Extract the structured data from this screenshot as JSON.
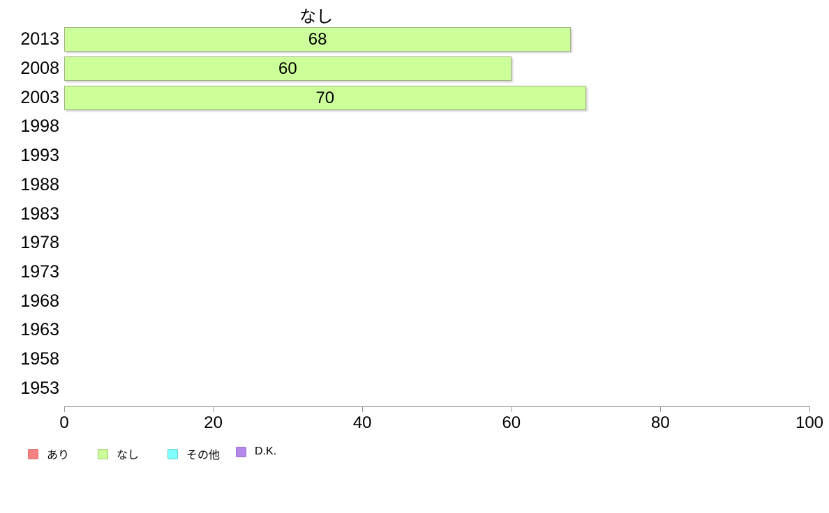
{
  "chart_data": {
    "type": "bar",
    "orientation": "horizontal",
    "title": "なし",
    "categories": [
      "2013",
      "2008",
      "2003",
      "1998",
      "1993",
      "1988",
      "1983",
      "1978",
      "1973",
      "1968",
      "1963",
      "1958",
      "1953"
    ],
    "values": [
      68,
      60,
      70,
      null,
      null,
      null,
      null,
      null,
      null,
      null,
      null,
      null,
      null
    ],
    "value_labels_shown": true,
    "xlim": [
      0,
      100
    ],
    "x_ticks": [
      0,
      20,
      40,
      60,
      80,
      100
    ],
    "grid": false,
    "bar_fill": "#ccff99",
    "bar_border": "#a2b383",
    "axis_color": "#999999",
    "text_color": "#000000",
    "legend_position": "bottom",
    "legend": [
      {
        "label": "あり",
        "fill": "#f58181",
        "border": "#db6f6f"
      },
      {
        "label": "なし",
        "fill": "#ccff99",
        "border": "#9cc96a"
      },
      {
        "label": "その他",
        "fill": "#80ffff",
        "border": "#6ad2d2"
      },
      {
        "label": "D.K.",
        "fill": "#b587e9",
        "border": "#9a6cd6"
      }
    ]
  }
}
